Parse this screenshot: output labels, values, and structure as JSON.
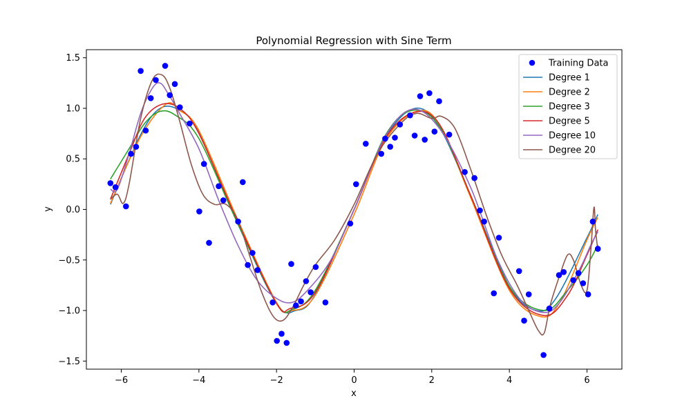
{
  "chart_data": {
    "type": "scatter",
    "title": "Polynomial Regression with Sine Term",
    "xlabel": "x",
    "ylabel": "y",
    "xlim": [
      -6.9,
      6.9
    ],
    "ylim": [
      -1.58,
      1.58
    ],
    "xticks": [
      -6,
      -4,
      -2,
      0,
      2,
      4,
      6
    ],
    "yticks": [
      -1.5,
      -1.0,
      -0.5,
      0.0,
      0.5,
      1.0,
      1.5
    ],
    "xtick_labels": [
      "−6",
      "−4",
      "−2",
      "0",
      "2",
      "4",
      "6"
    ],
    "ytick_labels": [
      "−1.5",
      "−1.0",
      "−0.5",
      "0.0",
      "0.5",
      "1.0",
      "1.5"
    ],
    "grid": false,
    "legend_position": "top-right",
    "scatter": {
      "name": "Training Data",
      "color": "#0000ff",
      "x": [
        -6.28,
        -6.15,
        -5.88,
        -5.75,
        -5.62,
        -5.5,
        -5.37,
        -5.24,
        -5.11,
        -4.87,
        -4.75,
        -4.62,
        -4.49,
        -4.24,
        -3.99,
        -3.87,
        -3.74,
        -3.49,
        -3.37,
        -2.99,
        -2.87,
        -2.74,
        -2.62,
        -2.49,
        -2.1,
        -1.99,
        -1.87,
        -1.74,
        -1.62,
        -1.5,
        -1.37,
        -1.24,
        -1.12,
        -0.99,
        -0.74,
        -0.1,
        0.05,
        0.3,
        0.7,
        0.8,
        0.93,
        1.05,
        1.18,
        1.44,
        1.56,
        1.7,
        1.82,
        1.94,
        2.07,
        2.19,
        2.45,
        2.85,
        3.1,
        3.24,
        3.35,
        3.6,
        3.73,
        4.25,
        4.38,
        4.5,
        4.88,
        5.03,
        5.28,
        5.4,
        5.65,
        5.78,
        5.9,
        6.03,
        6.15,
        6.28
      ],
      "y": [
        0.26,
        0.22,
        0.03,
        0.55,
        0.62,
        1.37,
        0.78,
        1.1,
        1.28,
        1.42,
        1.13,
        1.24,
        1.01,
        0.85,
        -0.02,
        0.45,
        -0.33,
        0.23,
        0.09,
        -0.12,
        0.27,
        -0.55,
        -0.43,
        -0.6,
        -0.92,
        -1.3,
        -1.23,
        -1.32,
        -0.54,
        -0.95,
        -0.91,
        -0.71,
        -0.82,
        -0.57,
        -0.92,
        -0.14,
        0.25,
        0.65,
        0.55,
        0.7,
        0.62,
        0.71,
        0.84,
        0.93,
        0.73,
        1.12,
        0.69,
        1.15,
        0.77,
        1.07,
        0.74,
        0.37,
        0.31,
        -0.01,
        -0.12,
        -0.83,
        -0.28,
        -0.61,
        -1.1,
        -0.84,
        -1.44,
        -0.98,
        -0.65,
        -0.62,
        -0.7,
        -0.63,
        -0.73,
        -0.84,
        -0.12,
        -0.39
      ]
    },
    "series": [
      {
        "name": "Degree 1",
        "color": "#1f77b4",
        "x": [
          -6.28,
          -5.5,
          -5.0,
          -4.5,
          -4.0,
          -3.0,
          -2.0,
          -1.5,
          -1.0,
          0.0,
          0.8,
          1.57,
          2.2,
          3.0,
          4.0,
          4.7,
          5.2,
          6.0,
          6.28
        ],
        "y": [
          0.05,
          0.74,
          1.0,
          0.98,
          0.76,
          -0.14,
          -0.93,
          -1.0,
          -0.84,
          0.0,
          0.71,
          1.0,
          0.81,
          0.14,
          -0.76,
          -1.0,
          -0.88,
          -0.28,
          -0.05
        ]
      },
      {
        "name": "Degree 2",
        "color": "#ff7f0e",
        "x": [
          -6.28,
          -5.5,
          -4.85,
          -4.5,
          -4.0,
          -3.0,
          -2.0,
          -1.6,
          -1.0,
          0.0,
          0.8,
          1.6,
          2.2,
          3.0,
          4.0,
          4.8,
          5.3,
          6.0,
          6.28
        ],
        "y": [
          0.06,
          0.72,
          1.04,
          0.98,
          0.78,
          -0.1,
          -0.92,
          -1.0,
          -0.85,
          -0.05,
          0.68,
          0.97,
          0.84,
          0.12,
          -0.8,
          -1.06,
          -0.92,
          -0.3,
          -0.08
        ]
      },
      {
        "name": "Degree 3",
        "color": "#2ca02c",
        "x": [
          -6.28,
          -5.8,
          -5.4,
          -5.0,
          -4.6,
          -4.0,
          -3.0,
          -2.0,
          -1.6,
          -1.0,
          0.0,
          0.8,
          1.5,
          2.2,
          3.0,
          4.0,
          4.9,
          5.5,
          6.0,
          6.28
        ],
        "y": [
          0.3,
          0.6,
          0.85,
          0.97,
          0.93,
          0.7,
          -0.14,
          -0.93,
          -0.99,
          -0.8,
          0.0,
          0.73,
          0.98,
          0.82,
          0.14,
          -0.76,
          -1.0,
          -0.8,
          -0.55,
          -0.35
        ]
      },
      {
        "name": "Degree 5",
        "color": "#d62728",
        "x": [
          -6.28,
          -5.8,
          -5.4,
          -4.95,
          -4.5,
          -4.0,
          -3.0,
          -2.0,
          -1.65,
          -1.0,
          0.0,
          0.8,
          1.55,
          2.2,
          3.0,
          4.0,
          4.9,
          5.5,
          6.0,
          6.28
        ],
        "y": [
          0.1,
          0.55,
          0.9,
          1.04,
          1.0,
          0.75,
          -0.12,
          -0.93,
          -0.98,
          -0.82,
          0.0,
          0.7,
          0.96,
          0.84,
          0.14,
          -0.78,
          -1.05,
          -0.85,
          -0.45,
          -0.2
        ]
      },
      {
        "name": "Degree 10",
        "color": "#9467bd",
        "x": [
          -6.28,
          -6.1,
          -5.8,
          -5.5,
          -5.2,
          -5.0,
          -4.8,
          -4.5,
          -4.0,
          -3.5,
          -3.0,
          -2.5,
          -2.0,
          -1.6,
          -1.2,
          -0.6,
          0.0,
          0.8,
          1.5,
          2.2,
          3.0,
          3.7,
          4.3,
          4.9,
          5.3,
          5.8,
          6.1,
          6.28
        ],
        "y": [
          0.2,
          0.2,
          0.55,
          0.95,
          1.2,
          1.25,
          1.15,
          0.95,
          0.6,
          0.1,
          -0.35,
          -0.7,
          -0.88,
          -0.92,
          -0.8,
          -0.5,
          0.0,
          0.72,
          0.99,
          0.8,
          0.22,
          -0.5,
          -0.9,
          -1.02,
          -0.92,
          -0.6,
          -0.35,
          -0.22
        ]
      },
      {
        "name": "Degree 20",
        "color": "#8c564b",
        "x": [
          -6.28,
          -6.1,
          -5.95,
          -5.8,
          -5.5,
          -5.2,
          -4.95,
          -4.75,
          -4.5,
          -4.2,
          -3.9,
          -3.6,
          -3.3,
          -3.0,
          -2.7,
          -2.4,
          -2.1,
          -1.85,
          -1.6,
          -1.3,
          -1.0,
          -0.5,
          0.0,
          0.6,
          1.2,
          1.6,
          2.0,
          2.25,
          2.6,
          3.0,
          3.4,
          3.8,
          4.2,
          4.5,
          4.75,
          4.9,
          5.05,
          5.3,
          5.5,
          5.65,
          5.85,
          6.0,
          6.1,
          6.18,
          6.22,
          6.28
        ],
        "y": [
          0.1,
          0.15,
          0.06,
          0.25,
          0.9,
          1.28,
          1.33,
          1.2,
          0.88,
          0.45,
          0.15,
          0.05,
          0.05,
          -0.1,
          -0.45,
          -0.8,
          -1.05,
          -1.1,
          -0.98,
          -0.75,
          -0.55,
          -0.3,
          0.05,
          0.55,
          0.85,
          0.95,
          0.9,
          0.92,
          0.8,
          0.4,
          -0.05,
          -0.45,
          -0.75,
          -1.0,
          -1.2,
          -1.22,
          -0.95,
          -0.65,
          -0.45,
          -0.5,
          -0.75,
          -0.8,
          -0.4,
          0.02,
          -0.2,
          -0.4
        ]
      }
    ]
  }
}
